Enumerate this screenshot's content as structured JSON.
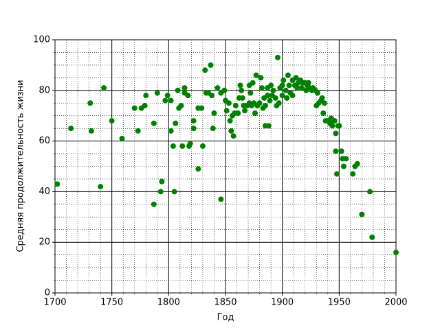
{
  "chart_data": {
    "type": "scatter",
    "xlabel": "Год",
    "ylabel": "Средняя продолжительность жизни",
    "xlim": [
      1700,
      2000
    ],
    "ylim": [
      0,
      100
    ],
    "xticks": [
      1700,
      1750,
      1800,
      1850,
      1900,
      1950,
      2000
    ],
    "yticks": [
      0,
      20,
      40,
      60,
      80,
      100
    ],
    "xminorticks": [
      1710,
      1720,
      1730,
      1740,
      1760,
      1770,
      1780,
      1790,
      1810,
      1820,
      1830,
      1840,
      1860,
      1870,
      1880,
      1890,
      1910,
      1920,
      1930,
      1940,
      1960,
      1970,
      1980,
      1990
    ],
    "yminorticks": [
      5,
      10,
      15,
      25,
      30,
      35,
      45,
      50,
      55,
      65,
      70,
      75,
      85,
      90,
      95
    ],
    "grid": true,
    "minor_grid": true,
    "series": [
      {
        "color": "#008000",
        "x": [
          1702,
          1714,
          1731,
          1732,
          1740,
          1743,
          1750,
          1759,
          1770,
          1773,
          1776,
          1779,
          1780,
          1787,
          1787,
          1790,
          1793,
          1794,
          1797,
          1799,
          1802,
          1802,
          1804,
          1805,
          1806,
          1808,
          1809,
          1811,
          1812,
          1814,
          1814,
          1817,
          1818,
          1819,
          1822,
          1822,
          1826,
          1826,
          1829,
          1830,
          1832,
          1833,
          1835,
          1837,
          1838,
          1839,
          1840,
          1843,
          1846,
          1846,
          1849,
          1850,
          1851,
          1853,
          1854,
          1855,
          1856,
          1857,
          1858,
          1859,
          1861,
          1862,
          1863,
          1864,
          1865,
          1866,
          1867,
          1869,
          1871,
          1871,
          1872,
          1873,
          1874,
          1875,
          1876,
          1877,
          1878,
          1880,
          1881,
          1882,
          1883,
          1884,
          1885,
          1885,
          1887,
          1887,
          1888,
          1889,
          1890,
          1891,
          1892,
          1894,
          1895,
          1896,
          1897,
          1898,
          1900,
          1900,
          1901,
          1903,
          1904,
          1905,
          1906,
          1907,
          1909,
          1909,
          1911,
          1912,
          1913,
          1914,
          1916,
          1917,
          1918,
          1920,
          1921,
          1922,
          1923,
          1924,
          1926,
          1927,
          1929,
          1930,
          1931,
          1932,
          1934,
          1935,
          1936,
          1937,
          1938,
          1940,
          1942,
          1943,
          1944,
          1946,
          1947,
          1947,
          1948,
          1949,
          1950,
          1952,
          1953,
          1954,
          1956,
          1962,
          1964,
          1966,
          1970,
          1977,
          1979,
          2000
        ],
        "values": [
          43,
          65,
          75,
          64,
          42,
          81,
          68,
          61,
          73,
          64,
          73,
          74,
          78,
          67,
          35,
          79,
          40,
          44,
          76,
          78,
          76,
          64,
          58,
          40,
          67,
          80,
          73,
          74,
          58,
          81,
          79,
          78,
          58,
          59,
          68,
          65,
          49,
          73,
          73,
          58,
          88,
          79,
          79,
          90,
          78,
          65,
          71,
          81,
          37,
          79,
          80,
          76,
          72,
          75,
          68,
          64,
          70,
          62,
          71,
          74,
          71,
          77,
          82,
          80,
          77,
          74,
          72,
          74,
          75,
          82,
          79,
          74,
          83,
          75,
          71,
          86,
          74,
          75,
          85,
          81,
          73,
          77,
          66,
          74,
          81,
          78,
          66,
          76,
          82,
          78,
          80,
          77,
          74,
          93,
          75,
          81,
          78,
          82,
          84,
          80,
          77,
          86,
          82,
          79,
          84,
          78,
          82,
          85,
          81,
          83,
          84,
          81,
          83,
          83,
          80,
          82,
          83,
          81,
          80,
          81,
          80,
          74,
          79,
          75,
          76,
          77,
          71,
          75,
          68,
          68,
          67,
          69,
          66,
          68,
          63,
          56,
          47,
          66,
          66,
          56,
          53,
          50,
          53,
          47,
          50,
          51,
          31,
          40,
          22,
          16
        ]
      }
    ]
  }
}
